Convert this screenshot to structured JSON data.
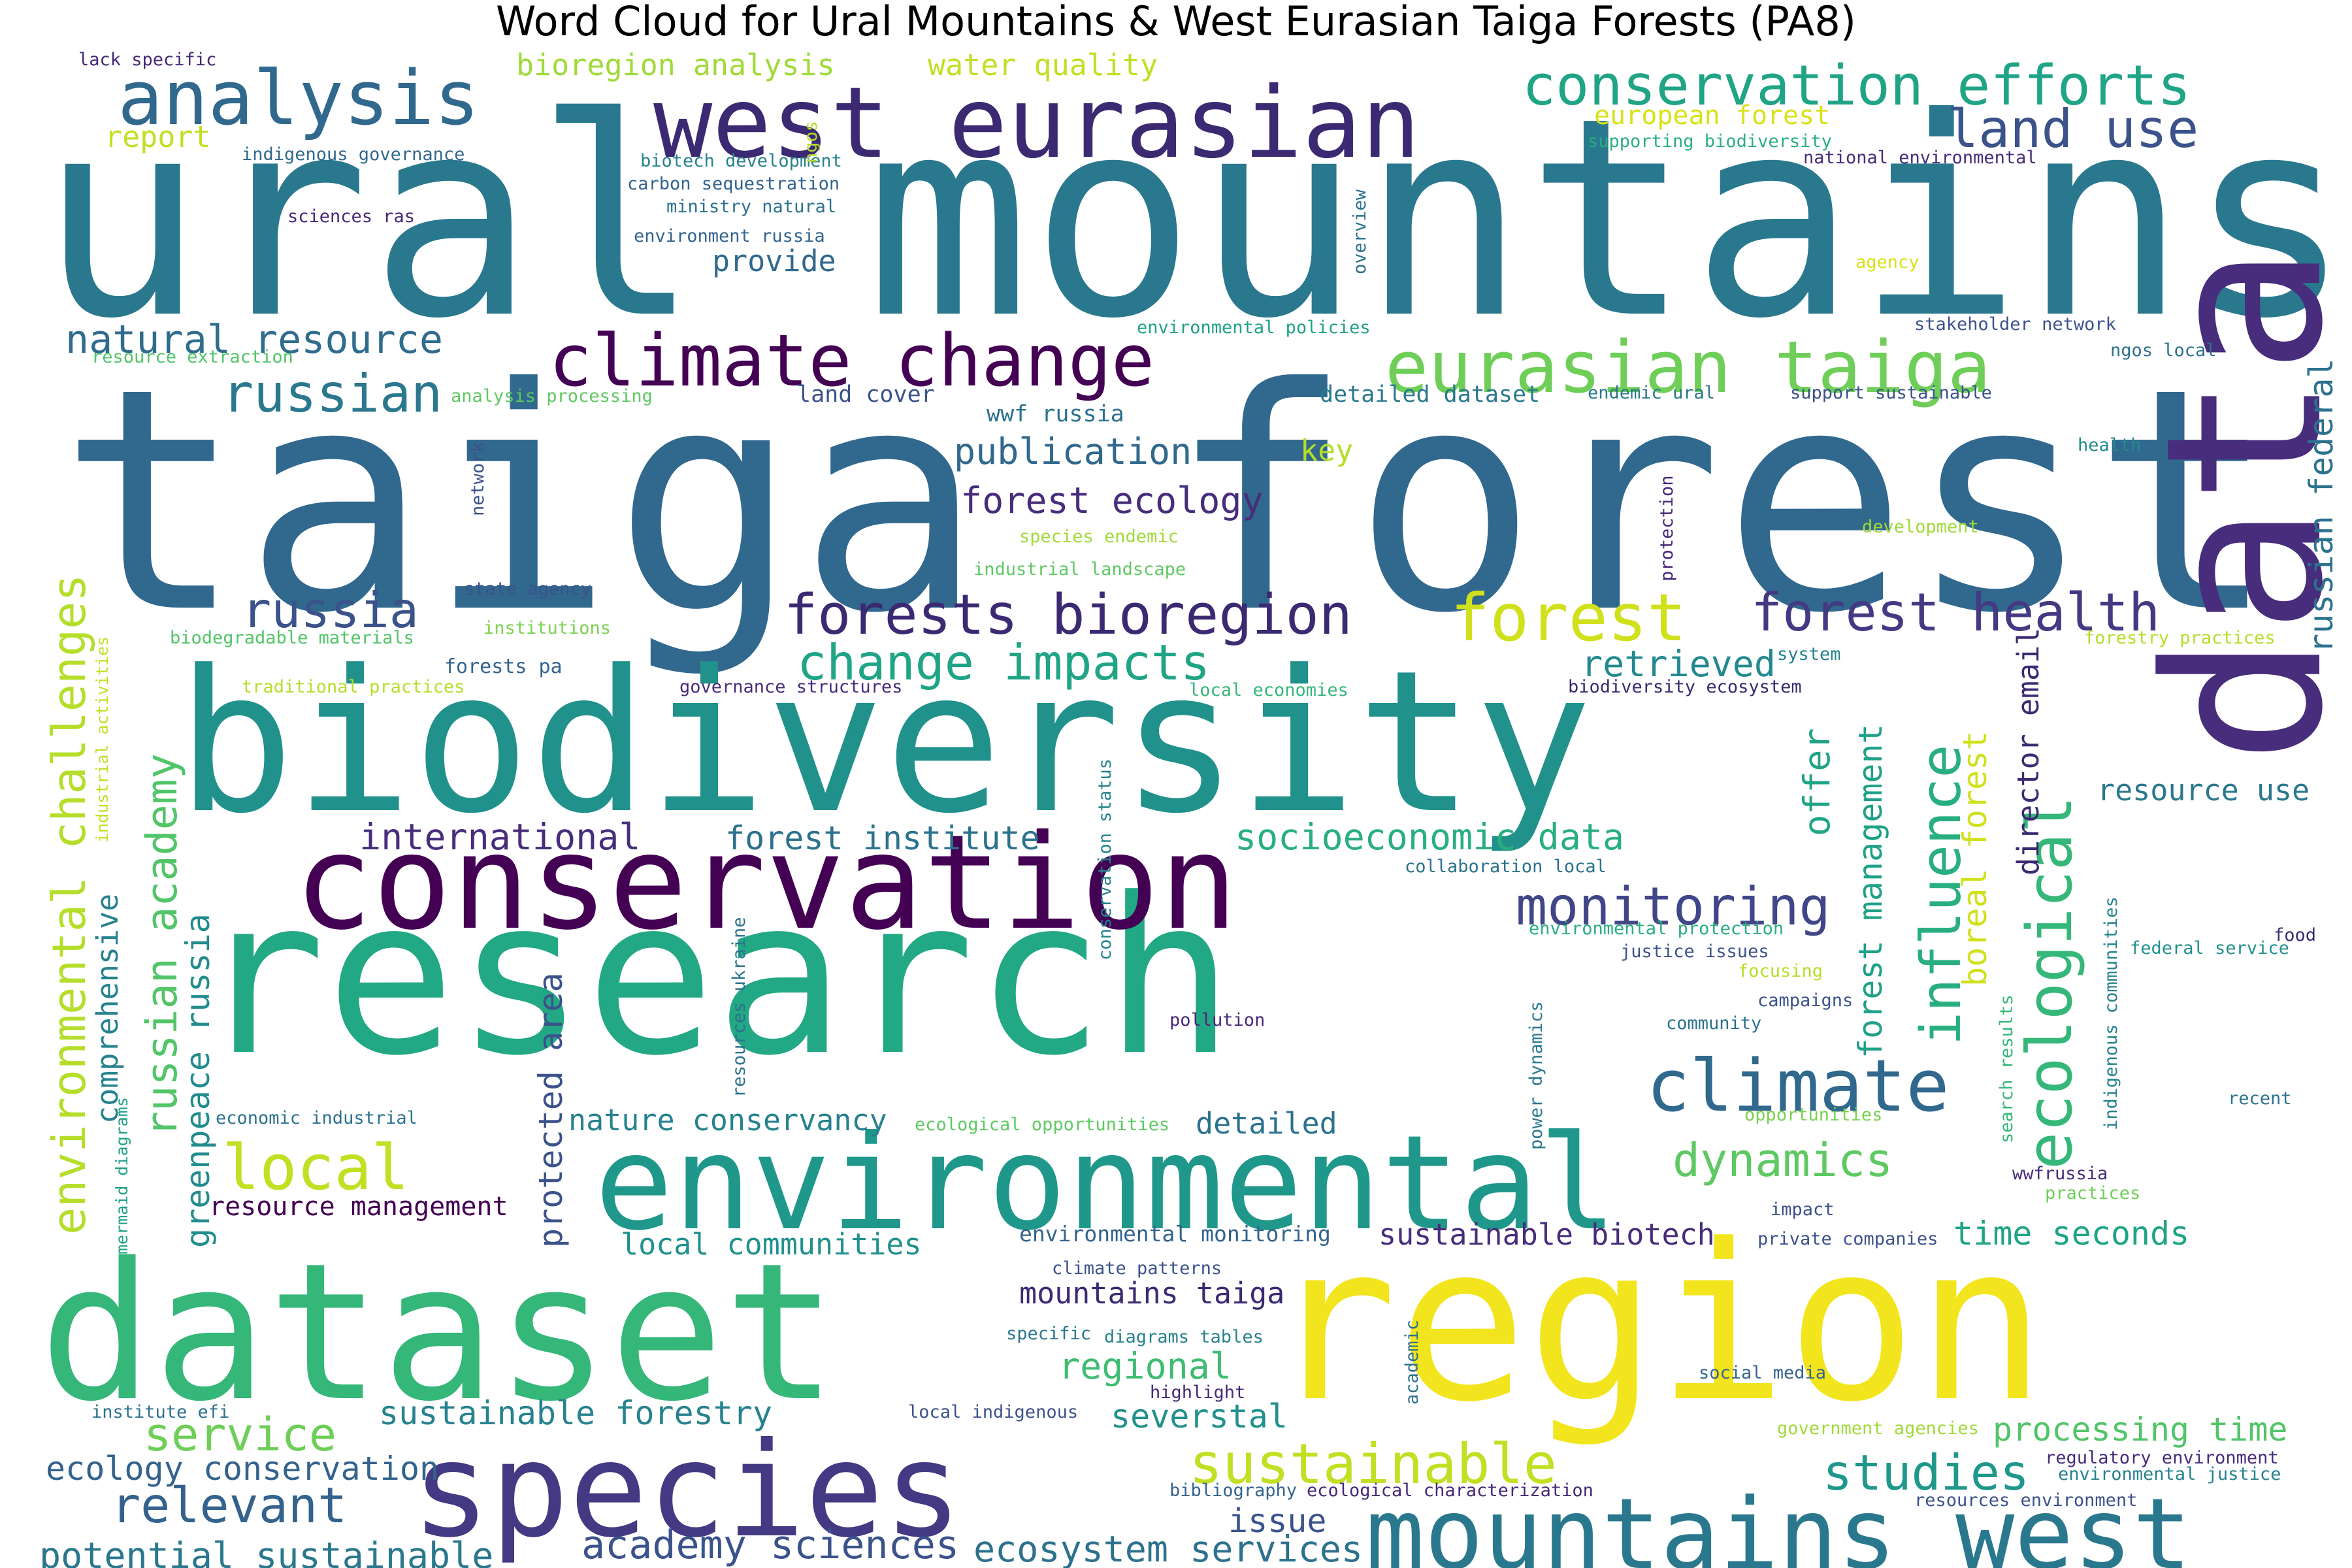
{
  "title": "Word Cloud for Ural Mountains & West Eurasian Taiga Forests (PA8)",
  "palette": "viridis",
  "words": [
    {
      "text": "ural mountains",
      "color": "#2a788e"
    },
    {
      "text": "taiga forest",
      "color": "#31688e"
    },
    {
      "text": "biodiversity",
      "color": "#21918c"
    },
    {
      "text": "research",
      "color": "#22a884"
    },
    {
      "text": "dataset",
      "color": "#35b779"
    },
    {
      "text": "region",
      "color": "#f2e51d"
    },
    {
      "text": "data",
      "color": "#472d7b"
    },
    {
      "text": "conservation",
      "color": "#440154"
    },
    {
      "text": "species",
      "color": "#443983"
    },
    {
      "text": "environmental",
      "color": "#1f988b"
    },
    {
      "text": "west eurasian",
      "color": "#3b2a72"
    },
    {
      "text": "mountains west",
      "color": "#2a788e"
    },
    {
      "text": "analysis",
      "color": "#31688e"
    },
    {
      "text": "climate change",
      "color": "#440154"
    },
    {
      "text": "eurasian taiga",
      "color": "#6ece58"
    },
    {
      "text": "conservation efforts",
      "color": "#20a486"
    },
    {
      "text": "land use",
      "color": "#3b528b"
    },
    {
      "text": "climate",
      "color": "#31688e"
    },
    {
      "text": "forest",
      "color": "#d0e11c"
    },
    {
      "text": "forests bioregion",
      "color": "#3b2a72"
    },
    {
      "text": "forest health",
      "color": "#443983"
    },
    {
      "text": "change impacts",
      "color": "#20a486"
    },
    {
      "text": "monitoring",
      "color": "#404688"
    },
    {
      "text": "local",
      "color": "#c2df23"
    },
    {
      "text": "sustainable",
      "color": "#c2df23"
    },
    {
      "text": "ecological",
      "color": "#35b779"
    },
    {
      "text": "influence",
      "color": "#29af7f"
    },
    {
      "text": "environmental challenges",
      "color": "#b5de2b"
    },
    {
      "text": "russian academy",
      "color": "#52c569"
    },
    {
      "text": "russian",
      "color": "#2a788e"
    },
    {
      "text": "russia",
      "color": "#3b528b"
    },
    {
      "text": "relevant",
      "color": "#33638d"
    },
    {
      "text": "studies",
      "color": "#1f988b"
    },
    {
      "text": "dynamics",
      "color": "#5ec962"
    },
    {
      "text": "natural resource",
      "color": "#2f6c8e"
    },
    {
      "text": "service",
      "color": "#6ece58"
    },
    {
      "text": "academy sciences",
      "color": "#3b528b"
    },
    {
      "text": "ecosystem services",
      "color": "#2c728e"
    },
    {
      "text": "potential sustainable",
      "color": "#2a788e"
    },
    {
      "text": "ecology conservation",
      "color": "#33638d"
    },
    {
      "text": "sustainable forestry",
      "color": "#26828e"
    },
    {
      "text": "socioeconomic data",
      "color": "#29af7f"
    },
    {
      "text": "international",
      "color": "#472d7b"
    },
    {
      "text": "forest institute",
      "color": "#2c728e"
    },
    {
      "text": "protected area",
      "color": "#3b528b"
    },
    {
      "text": "greenpeace russia",
      "color": "#228c8d"
    },
    {
      "text": "comprehensive",
      "color": "#26828e"
    },
    {
      "text": "publication",
      "color": "#31688e"
    },
    {
      "text": "forest ecology",
      "color": "#472d7b"
    },
    {
      "text": "retrieved",
      "color": "#23898e"
    },
    {
      "text": "forest management",
      "color": "#1fa187"
    },
    {
      "text": "boreal forest",
      "color": "#d0e11c"
    },
    {
      "text": "offer",
      "color": "#20a486"
    },
    {
      "text": "director email",
      "color": "#3b2a72"
    },
    {
      "text": "russian federal",
      "color": "#2c728e"
    },
    {
      "text": "resource use",
      "color": "#2a788e"
    },
    {
      "text": "processing time",
      "color": "#52c569"
    },
    {
      "text": "time seconds",
      "color": "#20a486"
    },
    {
      "text": "regional",
      "color": "#3fbc73"
    },
    {
      "text": "severstal",
      "color": "#21918c"
    },
    {
      "text": "issue",
      "color": "#3b528b"
    },
    {
      "text": "detailed",
      "color": "#2c728e"
    },
    {
      "text": "mountains taiga",
      "color": "#3b2a72"
    },
    {
      "text": "nature conservancy",
      "color": "#26828e"
    },
    {
      "text": "local communities",
      "color": "#21918c"
    },
    {
      "text": "sustainable biotech",
      "color": "#472d7b"
    },
    {
      "text": "resource management",
      "color": "#440154"
    },
    {
      "text": "bioregion analysis",
      "color": "#a0da39"
    },
    {
      "text": "water quality",
      "color": "#c2df23"
    },
    {
      "text": "european forest",
      "color": "#d8e219"
    },
    {
      "text": "report",
      "color": "#c2df23"
    },
    {
      "text": "provide",
      "color": "#31688e"
    },
    {
      "text": "key",
      "color": "#b5de2b"
    },
    {
      "text": "wwf russia",
      "color": "#2c728e"
    },
    {
      "text": "land cover",
      "color": "#3b528b"
    },
    {
      "text": "detailed dataset",
      "color": "#2a788e"
    },
    {
      "text": "lack specific",
      "color": "#482878"
    },
    {
      "text": "indigenous governance",
      "color": "#31688e"
    },
    {
      "text": "biotech development",
      "color": "#26828e"
    },
    {
      "text": "carbon sequestration",
      "color": "#33638d"
    },
    {
      "text": "ministry natural",
      "color": "#2c728e"
    },
    {
      "text": "sciences ras",
      "color": "#482878"
    },
    {
      "text": "environment russia",
      "color": "#33638d"
    },
    {
      "text": "supporting biodiversity",
      "color": "#29af7f"
    },
    {
      "text": "national environmental",
      "color": "#472d7b"
    },
    {
      "text": "agency",
      "color": "#d8e219"
    },
    {
      "text": "environmental policies",
      "color": "#1fa187"
    },
    {
      "text": "stakeholder network",
      "color": "#3b528b"
    },
    {
      "text": "ngos local",
      "color": "#2c728e"
    },
    {
      "text": "resource extraction",
      "color": "#52c569"
    },
    {
      "text": "analysis processing",
      "color": "#5ec962"
    },
    {
      "text": "endemic ural",
      "color": "#2a788e"
    },
    {
      "text": "support sustainable",
      "color": "#3b528b"
    },
    {
      "text": "health",
      "color": "#228c8d"
    },
    {
      "text": "species endemic",
      "color": "#a0da39"
    },
    {
      "text": "industrial landscape",
      "color": "#5ec962"
    },
    {
      "text": "development",
      "color": "#a0da39"
    },
    {
      "text": "state agency",
      "color": "#3b528b"
    },
    {
      "text": "institutions",
      "color": "#7ad151"
    },
    {
      "text": "biodegradable materials",
      "color": "#52c569"
    },
    {
      "text": "traditional practices",
      "color": "#b5de2b"
    },
    {
      "text": "forests pa",
      "color": "#33638d"
    },
    {
      "text": "governance structures",
      "color": "#472d7b"
    },
    {
      "text": "local economies",
      "color": "#35b779"
    },
    {
      "text": "biodiversity ecosystem",
      "color": "#3b2a72"
    },
    {
      "text": "system",
      "color": "#26828e"
    },
    {
      "text": "forestry practices",
      "color": "#b5de2b"
    },
    {
      "text": "collaboration local",
      "color": "#2c728e"
    },
    {
      "text": "environmental protection",
      "color": "#29af7f"
    },
    {
      "text": "justice issues",
      "color": "#3b528b"
    },
    {
      "text": "focusing",
      "color": "#b5de2b"
    },
    {
      "text": "campaigns",
      "color": "#3b528b"
    },
    {
      "text": "community",
      "color": "#2c728e"
    },
    {
      "text": "pollution",
      "color": "#482878"
    },
    {
      "text": "economic industrial",
      "color": "#2c728e"
    },
    {
      "text": "ecological opportunities",
      "color": "#5ec962"
    },
    {
      "text": "opportunities",
      "color": "#7ad151"
    },
    {
      "text": "food",
      "color": "#3b2a72"
    },
    {
      "text": "federal service",
      "color": "#21918c"
    },
    {
      "text": "recent",
      "color": "#2c728e"
    },
    {
      "text": "wwfrussia",
      "color": "#472d7b"
    },
    {
      "text": "practices",
      "color": "#6ece58"
    },
    {
      "text": "impact",
      "color": "#3b528b"
    },
    {
      "text": "private companies",
      "color": "#3b528b"
    },
    {
      "text": "environmental monitoring",
      "color": "#33638d"
    },
    {
      "text": "climate patterns",
      "color": "#3b528b"
    },
    {
      "text": "specific",
      "color": "#2a788e"
    },
    {
      "text": "diagrams tables",
      "color": "#26828e"
    },
    {
      "text": "highlight",
      "color": "#482878"
    },
    {
      "text": "social media",
      "color": "#33638d"
    },
    {
      "text": "institute efi",
      "color": "#2c728e"
    },
    {
      "text": "local indigenous",
      "color": "#3b528b"
    },
    {
      "text": "government agencies",
      "color": "#a0da39"
    },
    {
      "text": "regulatory environment",
      "color": "#472d7b"
    },
    {
      "text": "environmental justice",
      "color": "#26828e"
    },
    {
      "text": "bibliography",
      "color": "#33638d"
    },
    {
      "text": "ecological characterization",
      "color": "#482878"
    },
    {
      "text": "resources environment",
      "color": "#3b528b"
    },
    {
      "text": "overview",
      "color": "#2c728e"
    },
    {
      "text": "ngos",
      "color": "#b5de2b"
    },
    {
      "text": "network",
      "color": "#3b528b"
    },
    {
      "text": "protection",
      "color": "#482878"
    },
    {
      "text": "industrial activities",
      "color": "#c2df23"
    },
    {
      "text": "mermaid diagrams",
      "color": "#1fa187"
    },
    {
      "text": "resources ukraine",
      "color": "#2c728e"
    },
    {
      "text": "conservation status",
      "color": "#26828e"
    },
    {
      "text": "power dynamics",
      "color": "#2a788e"
    },
    {
      "text": "academic",
      "color": "#2c728e"
    },
    {
      "text": "search results",
      "color": "#35b779"
    },
    {
      "text": "indigenous communities",
      "color": "#26828e"
    }
  ]
}
